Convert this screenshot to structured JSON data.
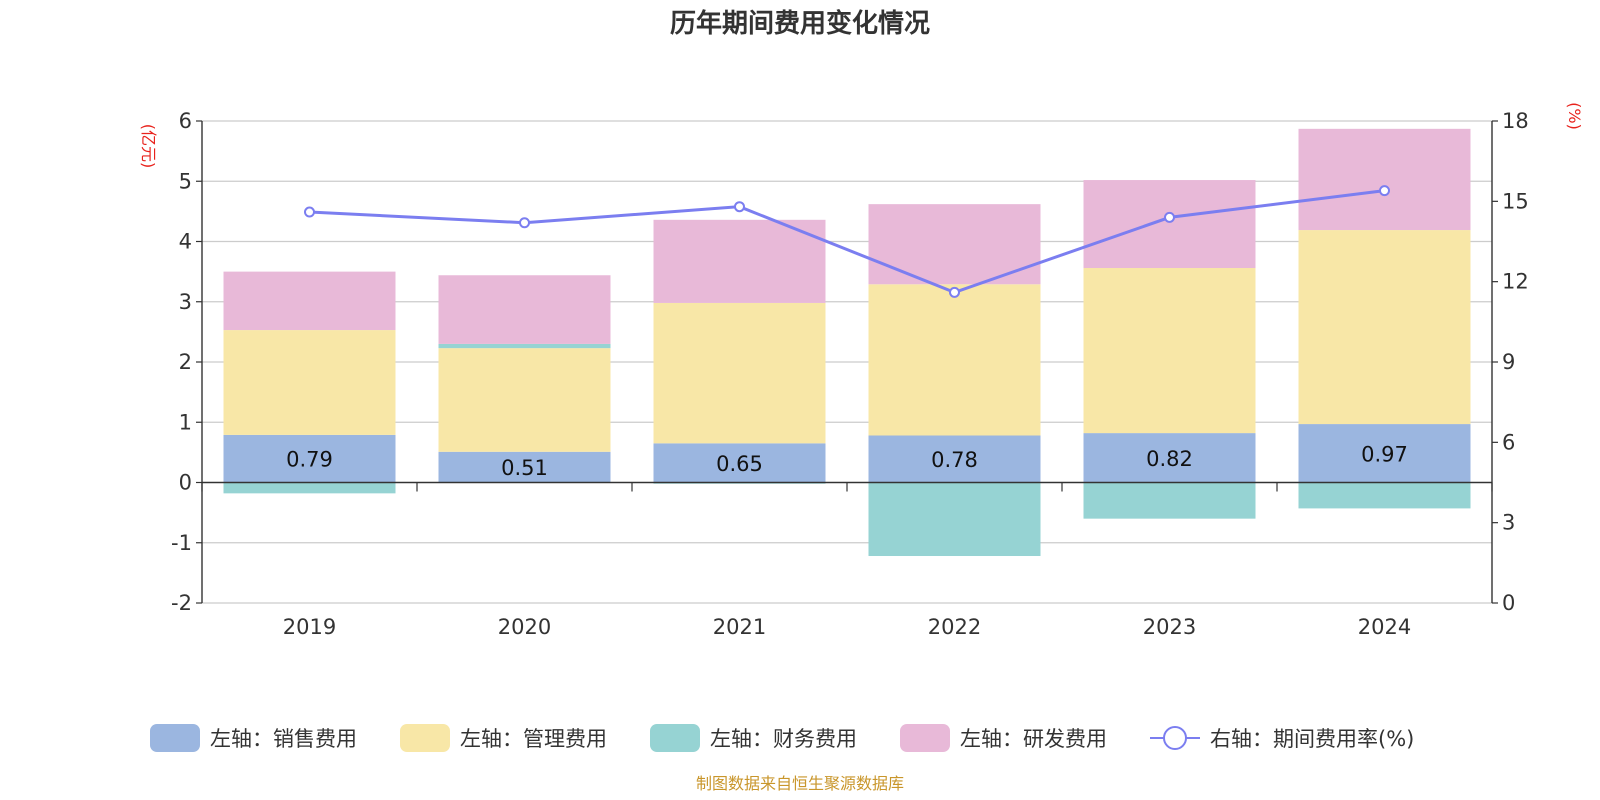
{
  "chart_data": {
    "type": "bar",
    "title": "历年期间费用变化情况",
    "categories": [
      "2019",
      "2020",
      "2021",
      "2022",
      "2023",
      "2024"
    ],
    "left_axis": {
      "unit": "(亿元)",
      "ylim": [
        -2,
        6
      ],
      "ticks": [
        "-2",
        "-1",
        "0",
        "1",
        "2",
        "3",
        "4",
        "5",
        "6"
      ]
    },
    "right_axis": {
      "unit": "(%)",
      "ylim": [
        0,
        18
      ],
      "ticks": [
        "0",
        "3",
        "6",
        "9",
        "12",
        "15",
        "18"
      ]
    },
    "series": [
      {
        "name": "左轴：销售费用",
        "axis": "left",
        "kind": "bar",
        "color": "#9bb6e0",
        "values": [
          0.79,
          0.51,
          0.65,
          0.78,
          0.82,
          0.97
        ],
        "labels": [
          "0.79",
          "0.51",
          "0.65",
          "0.78",
          "0.82",
          "0.97"
        ]
      },
      {
        "name": "左轴：管理费用",
        "axis": "left",
        "kind": "bar",
        "color": "#f8e7a7",
        "values": [
          1.74,
          1.72,
          2.33,
          2.51,
          2.74,
          3.22
        ]
      },
      {
        "name": "左轴：财务费用",
        "axis": "left",
        "kind": "bar",
        "color": "#96d3d3",
        "values": [
          -0.18,
          0.07,
          -0.02,
          -1.22,
          -0.6,
          -0.43
        ]
      },
      {
        "name": "左轴：研发费用",
        "axis": "left",
        "kind": "bar",
        "color": "#e8b9d8",
        "values": [
          0.97,
          1.14,
          1.38,
          1.33,
          1.46,
          1.68
        ]
      },
      {
        "name": "右轴：期间费用率(%)",
        "axis": "right",
        "kind": "line",
        "color": "#7b7ef0",
        "values": [
          14.6,
          14.2,
          14.8,
          11.6,
          14.4,
          15.4
        ]
      }
    ],
    "legend_position": "bottom",
    "source": "制图数据来自恒生聚源数据库"
  }
}
